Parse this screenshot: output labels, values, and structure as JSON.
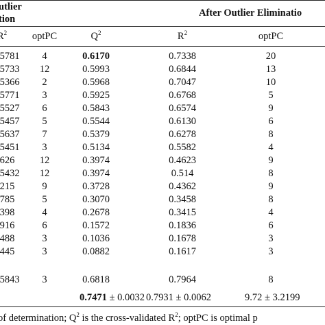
{
  "header": {
    "group_before_line1": "utlier",
    "group_before_line2": "tion",
    "group_after": "After Outlier Eliminatio"
  },
  "columns": {
    "r2": "R",
    "r2_sup": "2",
    "optpc_left": "optPC",
    "q2": "Q",
    "q2_sup": "2",
    "r2_after": "R",
    "r2_after_sup": "2",
    "optpc_right": "optPC"
  },
  "rows": [
    {
      "r2_before": ".5781",
      "optpc_before": "4",
      "q2": "0.6170",
      "r2_after": "0.7338",
      "optpc_after": "20"
    },
    {
      "r2_before": ".5733",
      "optpc_before": "12",
      "q2": "0.5993",
      "r2_after": "0.6844",
      "optpc_after": "13"
    },
    {
      "r2_before": ".5366",
      "optpc_before": "2",
      "q2": "0.5968",
      "r2_after": "0.7047",
      "optpc_after": "10"
    },
    {
      "r2_before": ".5771",
      "optpc_before": "3",
      "q2": "0.5925",
      "r2_after": "0.6768",
      "optpc_after": "5"
    },
    {
      "r2_before": ".5527",
      "optpc_before": "6",
      "q2": "0.5843",
      "r2_after": "0.6574",
      "optpc_after": "9"
    },
    {
      "r2_before": ".5457",
      "optpc_before": "5",
      "q2": "0.5544",
      "r2_after": "0.6130",
      "optpc_after": "6"
    },
    {
      "r2_before": ".5637",
      "optpc_before": "7",
      "q2": "0.5379",
      "r2_after": "0.6278",
      "optpc_after": "8"
    },
    {
      "r2_before": ".5451",
      "optpc_before": "3",
      "q2": "0.5134",
      "r2_after": "0.5582",
      "optpc_after": "4"
    },
    {
      "r2_before": ".626",
      "optpc_before": "12",
      "q2": "0.3974",
      "r2_after": "0.4623",
      "optpc_after": "9"
    },
    {
      "r2_before": ".5432",
      "optpc_before": "12",
      "q2": "0.3974",
      "r2_after": "0.514",
      "optpc_after": "8"
    },
    {
      "r2_before": ".215",
      "optpc_before": "9",
      "q2": "0.3728",
      "r2_after": "0.4362",
      "optpc_after": "9"
    },
    {
      "r2_before": ".785",
      "optpc_before": "5",
      "q2": "0.3070",
      "r2_after": "0.3458",
      "optpc_after": "8"
    },
    {
      "r2_before": ".398",
      "optpc_before": "4",
      "q2": "0.2678",
      "r2_after": "0.3415",
      "optpc_after": "4"
    },
    {
      "r2_before": ".916",
      "optpc_before": "6",
      "q2": "0.1572",
      "r2_after": "0.1836",
      "optpc_after": "6"
    },
    {
      "r2_before": ".488",
      "optpc_before": "3",
      "q2": "0.1036",
      "r2_after": "0.1678",
      "optpc_after": "3"
    },
    {
      "r2_before": ".445",
      "optpc_before": "3",
      "q2": "0.0882",
      "r2_after": "0.1617",
      "optpc_after": "3"
    }
  ],
  "last_row": {
    "r2_before": ".5843",
    "optpc_before": "3",
    "q2": "0.6818",
    "r2_after": "0.7964",
    "optpc_after": "8"
  },
  "summary": {
    "q2": "0.7471 ± 0.0032",
    "r2": "0.7931 ± 0.0062",
    "optpc": "9.72 ± 3.2199"
  },
  "footnote": {
    "part1": "of determination; Q",
    "sup": "2",
    "part2": " is the cross-validated R",
    "sup2": "2",
    "part3": "; optPC is optimal p"
  }
}
